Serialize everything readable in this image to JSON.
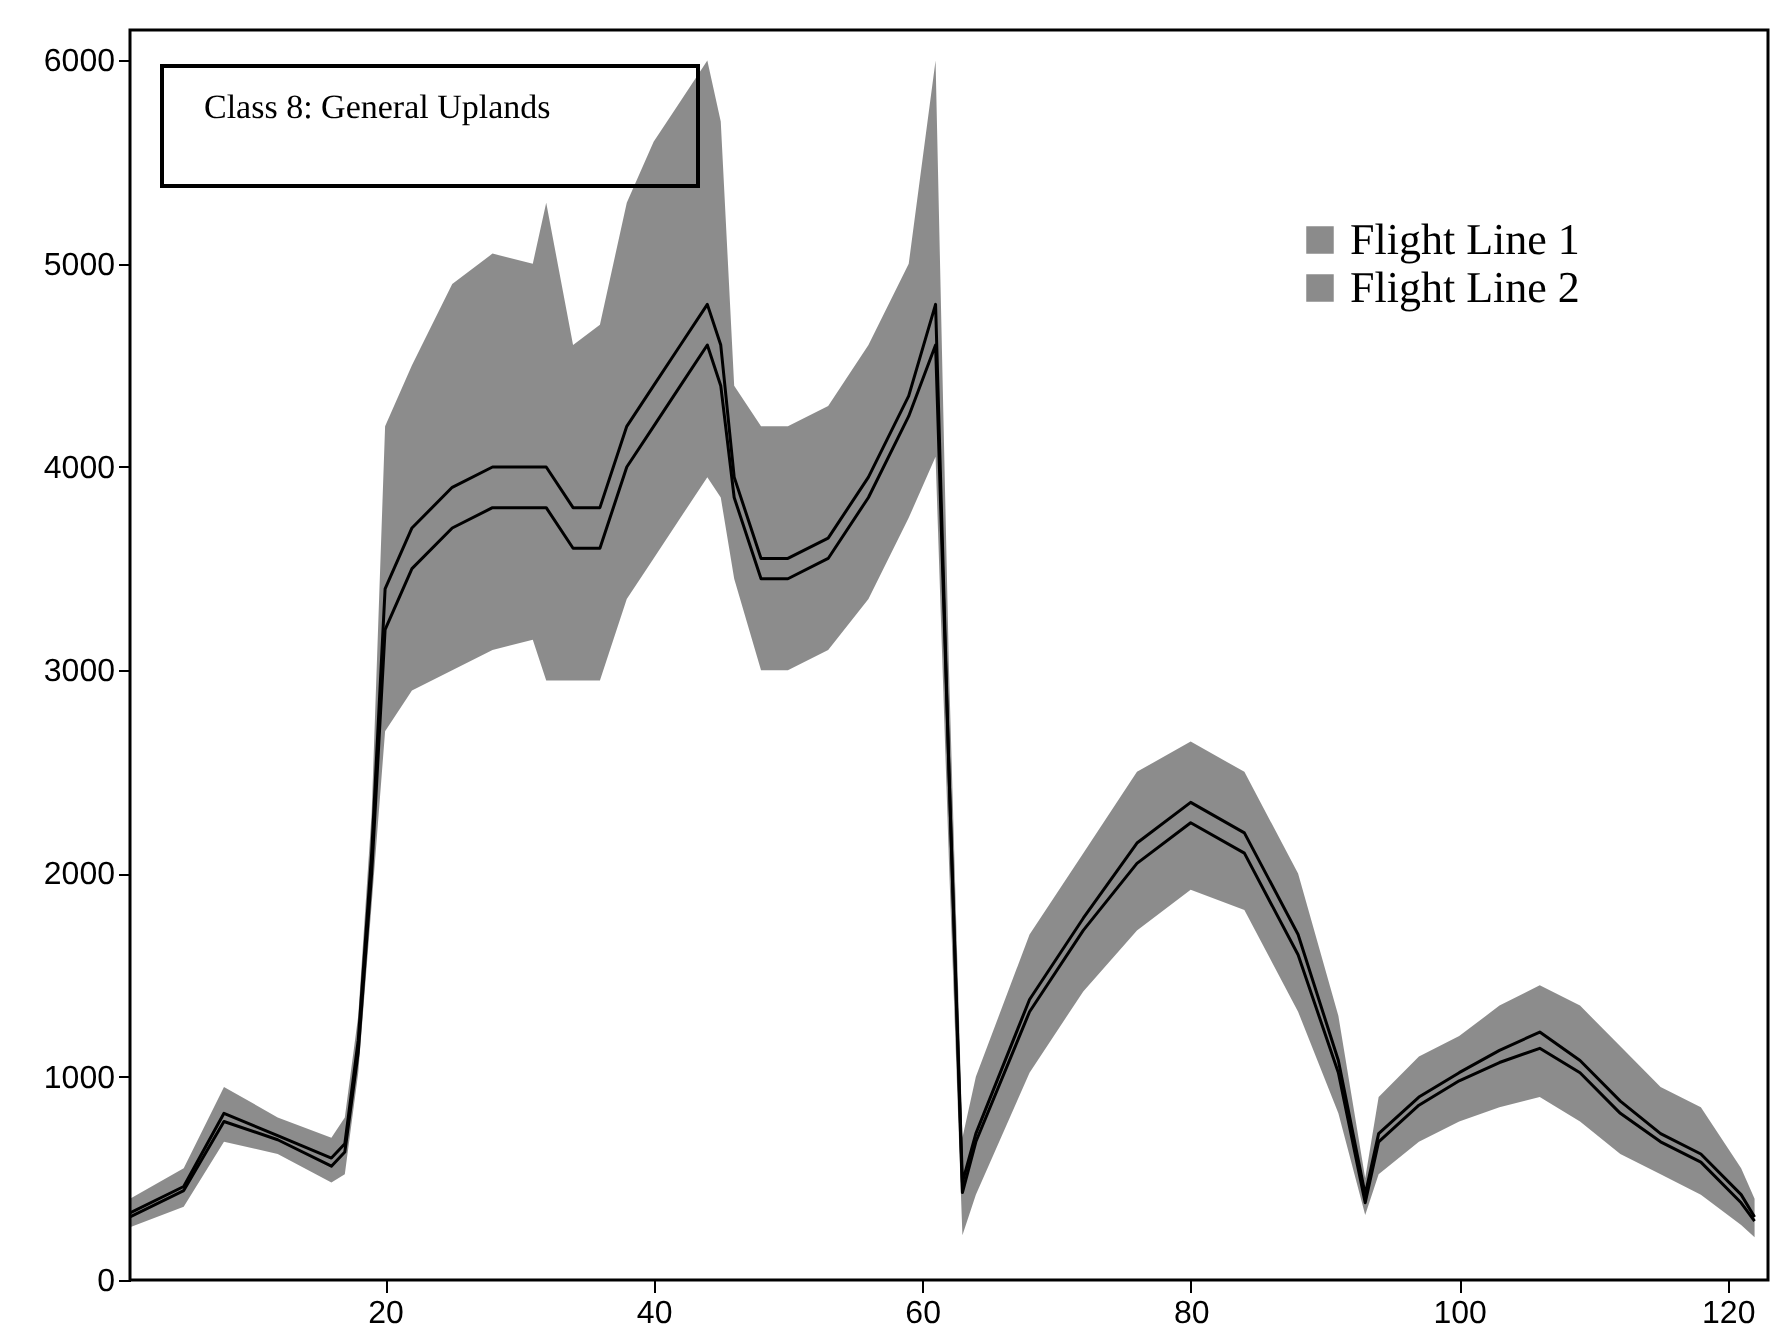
{
  "chart_data": {
    "type": "line",
    "annotations": [
      "Class 8: General Uplands"
    ],
    "x": [
      1,
      5,
      8,
      12,
      16,
      17,
      18,
      19,
      20,
      22,
      25,
      28,
      31,
      32,
      34,
      36,
      38,
      40,
      42,
      44,
      45,
      46,
      48,
      50,
      53,
      56,
      59,
      61,
      62,
      63,
      64,
      68,
      72,
      76,
      80,
      84,
      88,
      91,
      93,
      94,
      97,
      100,
      103,
      106,
      109,
      112,
      115,
      118,
      121,
      122
    ],
    "series": [
      {
        "name": "Flight Line 1",
        "color": "#000000",
        "values": [
          330,
          460,
          820,
          710,
          600,
          670,
          1180,
          2100,
          3400,
          3700,
          3900,
          4000,
          4000,
          4000,
          3800,
          3800,
          4200,
          4400,
          4600,
          4800,
          4600,
          3950,
          3550,
          3550,
          3650,
          3950,
          4350,
          4800,
          2500,
          480,
          720,
          1380,
          1780,
          2150,
          2350,
          2200,
          1700,
          1080,
          420,
          720,
          900,
          1020,
          1130,
          1220,
          1080,
          880,
          720,
          620,
          420,
          310
        ],
        "lower": [
          260,
          360,
          680,
          620,
          480,
          520,
          1020,
          1850,
          2700,
          2900,
          3000,
          3100,
          3150,
          2950,
          2950,
          2950,
          3350,
          3550,
          3750,
          3950,
          3850,
          3450,
          3000,
          3000,
          3100,
          3350,
          3750,
          4050,
          2050,
          220,
          420,
          1020,
          1420,
          1720,
          1920,
          1820,
          1320,
          820,
          320,
          520,
          680,
          780,
          850,
          900,
          780,
          620,
          520,
          420,
          270,
          210
        ],
        "upper": [
          400,
          550,
          950,
          800,
          700,
          800,
          1300,
          2300,
          4200,
          4500,
          4900,
          5050,
          5000,
          5300,
          4600,
          4700,
          5300,
          5600,
          5800,
          6000,
          5700,
          4400,
          4200,
          4200,
          4300,
          4600,
          5000,
          6000,
          3000,
          700,
          1000,
          1700,
          2100,
          2500,
          2650,
          2500,
          2000,
          1300,
          500,
          900,
          1100,
          1200,
          1350,
          1450,
          1350,
          1150,
          950,
          850,
          550,
          400
        ]
      },
      {
        "name": "Flight Line 2",
        "color": "#000000",
        "values": [
          310,
          440,
          780,
          690,
          560,
          630,
          1120,
          2000,
          3200,
          3500,
          3700,
          3800,
          3800,
          3800,
          3600,
          3600,
          4000,
          4200,
          4400,
          4600,
          4400,
          3850,
          3450,
          3450,
          3550,
          3850,
          4250,
          4600,
          2500,
          430,
          680,
          1320,
          1720,
          2050,
          2250,
          2100,
          1600,
          1020,
          380,
          680,
          860,
          980,
          1070,
          1140,
          1020,
          820,
          680,
          580,
          380,
          290
        ]
      }
    ],
    "xlim": [
      1,
      123
    ],
    "xticks": [
      20,
      40,
      60,
      80,
      100,
      120
    ],
    "ylim": [
      0,
      6150
    ],
    "yticks": [
      0,
      1000,
      2000,
      3000,
      4000,
      5000,
      6000
    ],
    "legend": "top right"
  }
}
